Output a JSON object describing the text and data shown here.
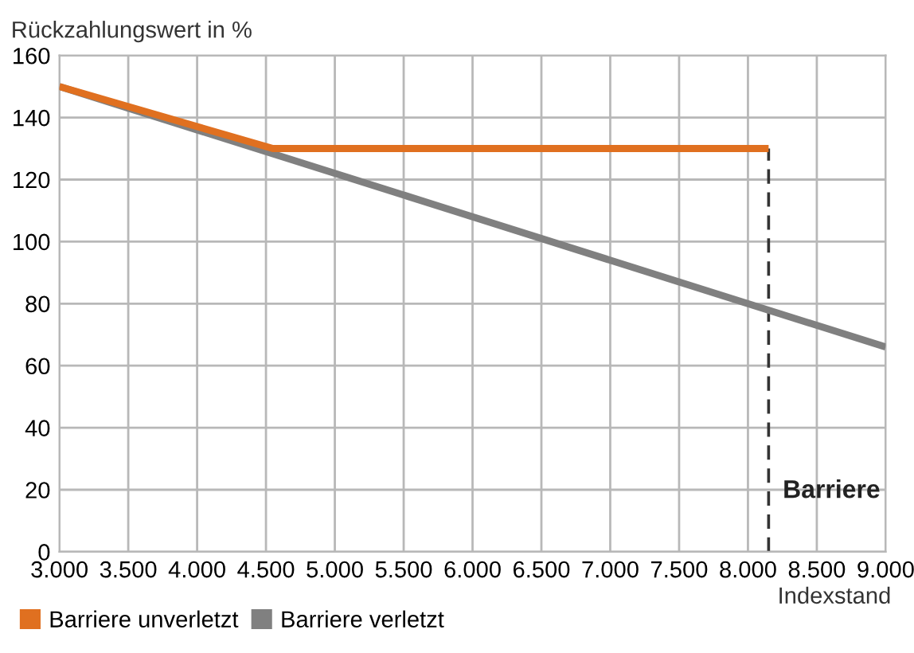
{
  "chart_data": {
    "type": "line",
    "ylabel": "Rückzahlungswert in %",
    "xlabel": "Indexstand",
    "series": [
      {
        "name": "Barriere unverletzt",
        "color": "#e07020",
        "x": [
          3000,
          4550,
          8150
        ],
        "values": [
          150,
          130,
          130
        ]
      },
      {
        "name": "Barriere verletzt",
        "color": "#808080",
        "x": [
          3000,
          9000
        ],
        "values": [
          150,
          66
        ]
      }
    ],
    "xlim": [
      3000,
      9000
    ],
    "ylim": [
      0,
      160
    ],
    "xticks": [
      {
        "value": 3000,
        "label": "3.000"
      },
      {
        "value": 3500,
        "label": "3.500"
      },
      {
        "value": 4000,
        "label": "4.000"
      },
      {
        "value": 4500,
        "label": "4.500"
      },
      {
        "value": 5000,
        "label": "5.000"
      },
      {
        "value": 5500,
        "label": "5.500"
      },
      {
        "value": 6000,
        "label": "6.000"
      },
      {
        "value": 6500,
        "label": "6.500"
      },
      {
        "value": 7000,
        "label": "7.000"
      },
      {
        "value": 7500,
        "label": "7.500"
      },
      {
        "value": 8000,
        "label": "8.000"
      },
      {
        "value": 8500,
        "label": "8.500"
      },
      {
        "value": 9000,
        "label": "9.000"
      }
    ],
    "yticks": [
      0,
      20,
      40,
      60,
      80,
      100,
      120,
      140,
      160
    ],
    "ref_lines": [
      {
        "axis": "x",
        "value": 8150,
        "label": "Barriere",
        "color": "#333333",
        "line_style": "dashed"
      }
    ],
    "grid": true,
    "legend": "bottom",
    "marker": "none",
    "line_style": "solid"
  }
}
